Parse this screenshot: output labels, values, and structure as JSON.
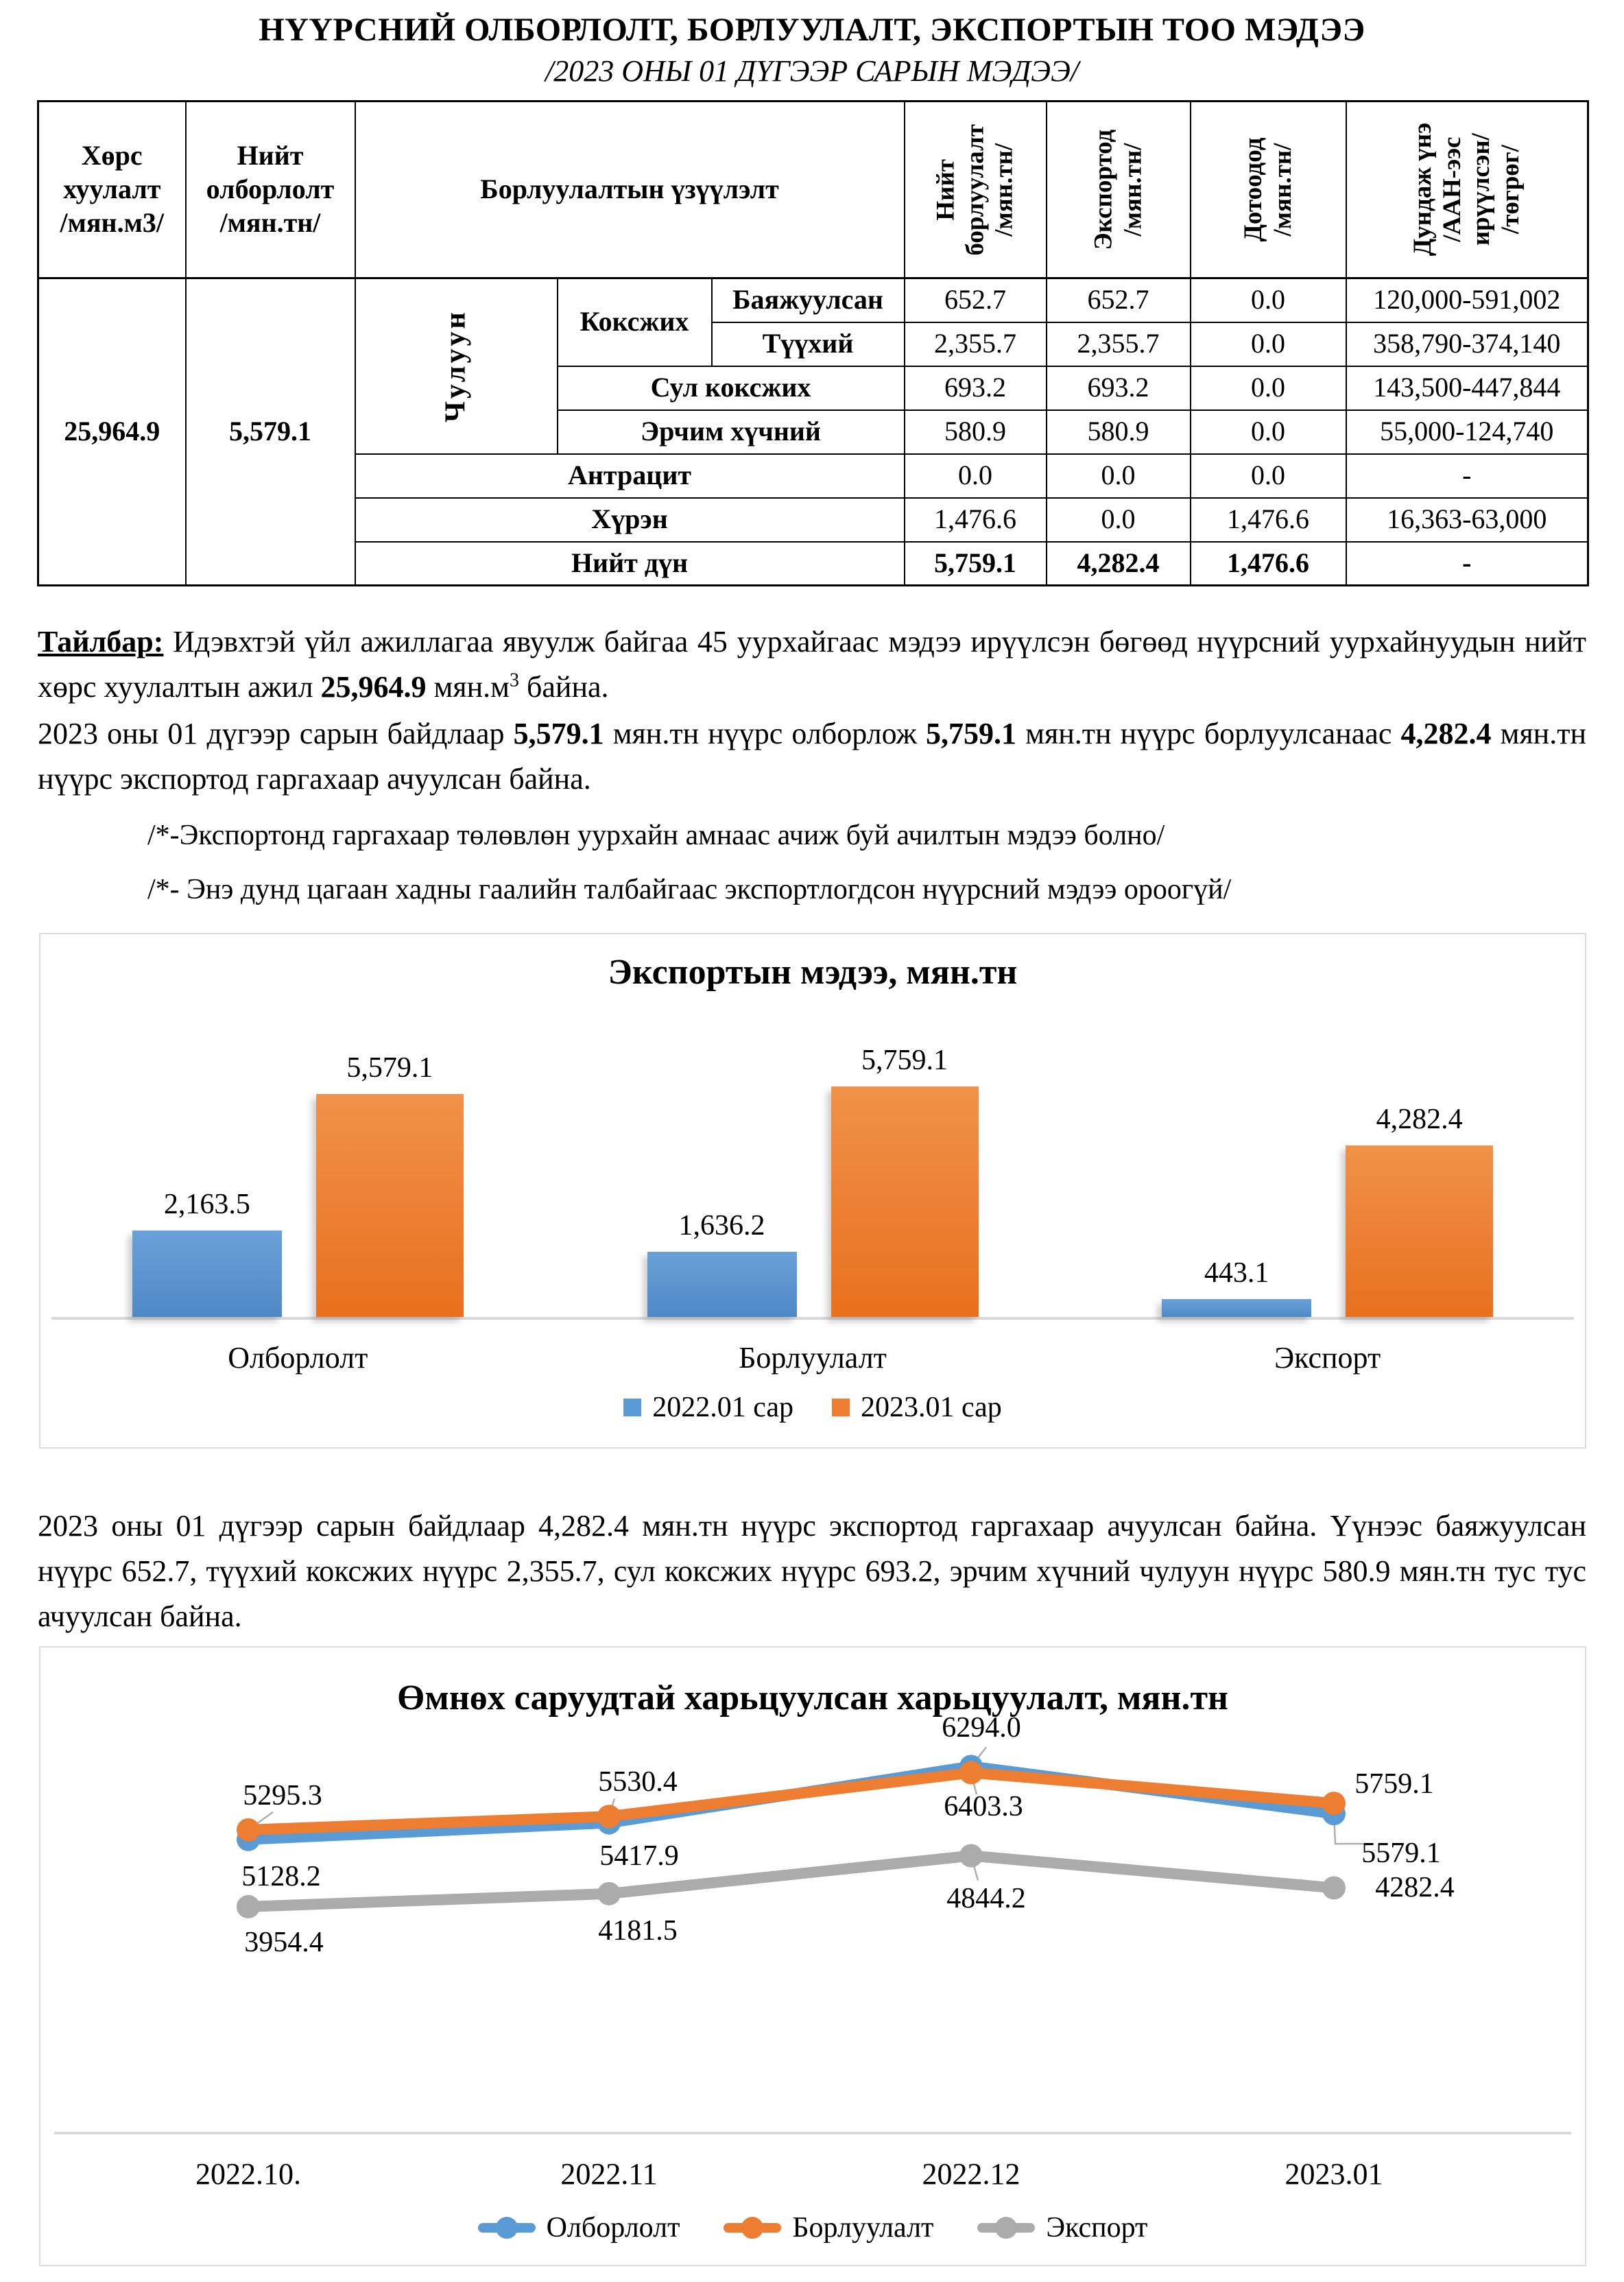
{
  "page": {
    "title": "НҮҮРСНИЙ ОЛБОРЛОЛТ, БОРЛУУЛАЛТ, ЭКСПОРТЫН ТОО МЭДЭЭ",
    "subtitle": "/2023 ОНЫ 01 ДҮГЭЭР САРЫН МЭДЭЭ/"
  },
  "table": {
    "header": {
      "col_soil": "Хөрс\nхуулалт\n/мян.м3/",
      "col_total_mining": "Нийт\nолборлолт\n/мян.тн/",
      "col_sales_group": "Борлуулалтын үзүүлэлт",
      "col_total_sales": "Нийт\nборлуулалт\n/мян.тн/",
      "col_export": "Экспортод\n/мян.тн/",
      "col_domestic": "Дотоодод\n/мян.тн/",
      "col_avg_price": "Дундаж үнэ\n/ААН-ээс\nирүүлсэн/\n/төгрөг/"
    },
    "soil_total": "25,964.9",
    "mining_total": "5,579.1",
    "stone_label": "Чулуун",
    "coking_label": "Коксжих",
    "rows": [
      {
        "label": "Баяжуулсан",
        "sales": "652.7",
        "export": "652.7",
        "domestic": "0.0",
        "price": "120,000-591,002"
      },
      {
        "label": "Түүхий",
        "sales": "2,355.7",
        "export": "2,355.7",
        "domestic": "0.0",
        "price": "358,790-374,140"
      },
      {
        "label": "Сул коксжих",
        "sales": "693.2",
        "export": "693.2",
        "domestic": "0.0",
        "price": "143,500-447,844"
      },
      {
        "label": "Эрчим хүчний",
        "sales": "580.9",
        "export": "580.9",
        "domestic": "0.0",
        "price": "55,000-124,740"
      },
      {
        "label": "Антрацит",
        "sales": "0.0",
        "export": "0.0",
        "domestic": "0.0",
        "price": "-"
      },
      {
        "label": "Хүрэн",
        "sales": "1,476.6",
        "export": "0.0",
        "domestic": "1,476.6",
        "price": "16,363-63,000"
      },
      {
        "label": "Нийт  дүн",
        "sales": "5,759.1",
        "export": "4,282.4",
        "domestic": "1,476.6",
        "price": "-"
      }
    ]
  },
  "notes": {
    "p1": {
      "label": "Тайлбар:",
      "t1": " Идэвхтэй үйл ажиллагаа явуулж байгаа 45 уурхайгаас мэдээ ирүүлсэн бөгөөд нүүрсний уурхайнуудын нийт хөрс хуулалтын ажил ",
      "b1": "25,964.9",
      "t2": " мян.м",
      "sup": "3",
      "t3": " байна."
    },
    "p2": {
      "t1": "2023 оны 01 дүгээр сарын байдлаар ",
      "b1": "5,579.1",
      "t2": " мян.тн нүүрс олборлож ",
      "b2": "5,759.1",
      "t3": " мян.тн нүүрс борлуулсанаас ",
      "b3": "4,282.4",
      "t4": " мян.тн нүүрс экспортод гаргахаар ачуулсан байна."
    },
    "star1": "/*-Экспортонд гаргахаар төлөвлөн уурхайн амнаас ачиж буй ачилтын мэдээ болно/",
    "star2": "/*- Энэ дунд цагаан хадны гаалийн талбайгаас экспортлогдсон нүүрсний мэдээ ороогүй/",
    "p3": "2023 оны 01 дүгээр сарын байдлаар 4,282.4 мян.тн нүүрс экспортод гаргахаар ачуулсан байна. Үүнээс баяжуулсан нүүрс 652.7, түүхий коксжих нүүрс 2,355.7, сул коксжих нүүрс 693.2, эрчим хүчний чулуун нүүрс 580.9 мян.тн тус тус ачуулсан байна."
  },
  "chart_data": [
    {
      "type": "bar",
      "title": "Экспортын мэдээ, мян.тн",
      "categories": [
        "Олборлолт",
        "Борлуулалт",
        "Экспорт"
      ],
      "series": [
        {
          "name": "2022.01 сар",
          "color": "#5B9BD5",
          "values": [
            2163.5,
            1636.2,
            443.1
          ],
          "labels": [
            "2,163.5",
            "1,636.2",
            "443.1"
          ]
        },
        {
          "name": "2023.01 сар",
          "color": "#ED7D31",
          "values": [
            5579.1,
            5759.1,
            4282.4
          ],
          "labels": [
            "5,579.1",
            "5,759.1",
            "4,282.4"
          ]
        }
      ],
      "xlabel": "",
      "ylabel": "",
      "ylim": [
        0,
        6000
      ],
      "grid": false,
      "legend_position": "bottom"
    },
    {
      "type": "line",
      "title": "Өмнөх саруудтай харьцуулсан харьцуулалт, мян.тн",
      "x": [
        "2022.10.",
        "2022.11",
        "2022.12",
        "2023.01"
      ],
      "series": [
        {
          "name": "Олборлолт",
          "color": "#5B9BD5",
          "values": [
            5128.2,
            5417.9,
            6294.0,
            5579.1
          ],
          "labels": [
            "5128.2",
            "5417.9",
            "6294.0",
            "5579.1"
          ]
        },
        {
          "name": "Борлуулалт",
          "color": "#ED7D31",
          "values": [
            5295.3,
            5530.4,
            6403.3,
            5759.1
          ],
          "labels": [
            "5295.3",
            "5530.4",
            "6403.3",
            "5759.1"
          ]
        },
        {
          "name": "Экспорт",
          "color": "#ABABAB",
          "values": [
            3954.4,
            4181.5,
            4844.2,
            4282.4
          ],
          "labels": [
            "3954.4",
            "4181.5",
            "4844.2",
            "4282.4"
          ]
        }
      ],
      "xlabel": "",
      "ylabel": "",
      "ylim": [
        0,
        6700
      ],
      "grid": false,
      "legend_position": "bottom"
    }
  ],
  "colors": {
    "series_blue": "#5B9BD5",
    "series_orange": "#ED7D31",
    "series_gray": "#ABABAB",
    "axis_gray": "#D9D9D9",
    "table_border": "#000000"
  }
}
